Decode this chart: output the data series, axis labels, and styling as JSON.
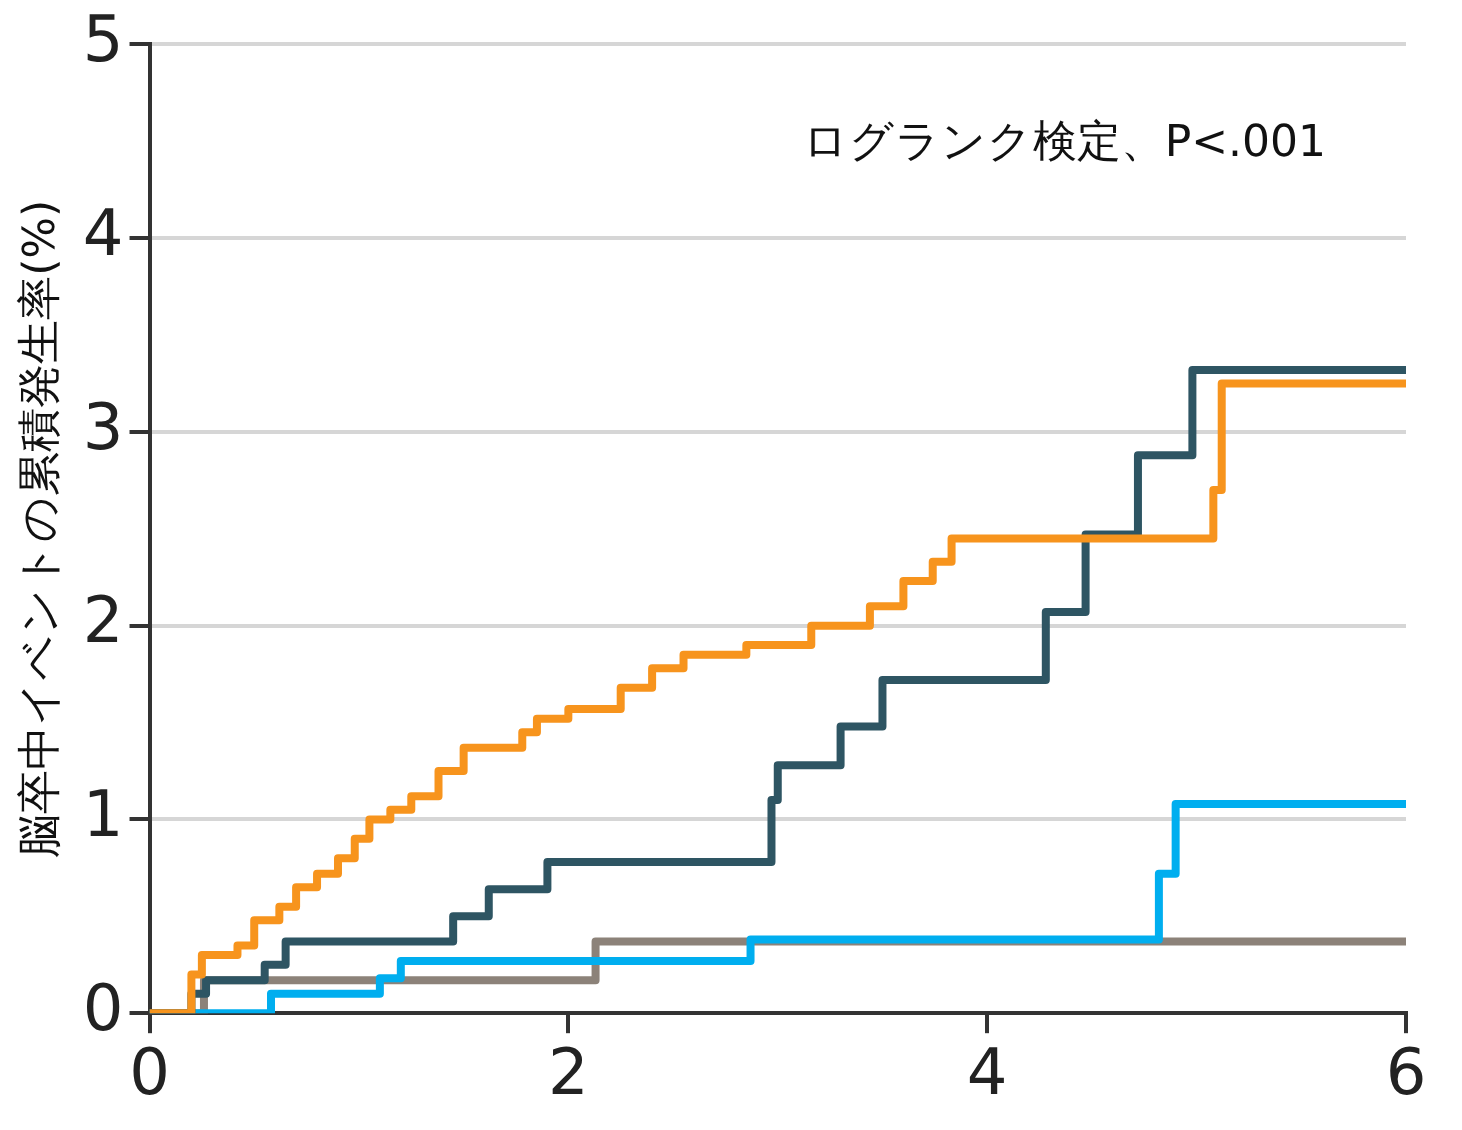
{
  "chart_data": {
    "type": "step",
    "ylabel": "脳卒中イベントの累積発生率(%)",
    "annotations": [
      "ログランク検定、P<.001"
    ],
    "xlim": [
      0,
      6
    ],
    "xticks": [
      0,
      2,
      4,
      6
    ],
    "ylim": [
      0,
      5
    ],
    "yticks": [
      0,
      1,
      2,
      3,
      4,
      5
    ],
    "grid": "y",
    "legend": false,
    "marker": "none",
    "line_style": "solid",
    "series": [
      {
        "color": "#f7941d",
        "x": [
          0,
          0.2,
          0.25,
          0.42,
          0.5,
          0.62,
          0.7,
          0.8,
          0.9,
          0.98,
          1.05,
          1.15,
          1.25,
          1.38,
          1.5,
          1.78,
          1.85,
          2.0,
          2.25,
          2.4,
          2.55,
          2.85,
          3.16,
          3.44,
          3.6,
          3.74,
          3.83,
          5.08,
          5.12,
          6
        ],
        "values": [
          0,
          0.2,
          0.3,
          0.35,
          0.48,
          0.55,
          0.65,
          0.72,
          0.8,
          0.9,
          1.0,
          1.05,
          1.12,
          1.25,
          1.37,
          1.45,
          1.52,
          1.57,
          1.68,
          1.78,
          1.85,
          1.9,
          2.0,
          2.1,
          2.23,
          2.33,
          2.45,
          2.7,
          3.25,
          3.25
        ]
      },
      {
        "color": "#2e5563",
        "x": [
          0,
          0.2,
          0.27,
          0.55,
          0.65,
          1.45,
          1.62,
          1.9,
          2.97,
          3.0,
          3.3,
          3.5,
          4.28,
          4.47,
          4.72,
          4.98,
          6
        ],
        "values": [
          0,
          0.1,
          0.17,
          0.25,
          0.37,
          0.5,
          0.64,
          0.78,
          1.1,
          1.28,
          1.48,
          1.72,
          2.07,
          2.47,
          2.88,
          3.32,
          3.32
        ]
      },
      {
        "color": "#00aeef",
        "x": [
          0,
          0.58,
          1.1,
          1.2,
          2.87,
          4.82,
          4.9,
          6
        ],
        "values": [
          0,
          0.1,
          0.18,
          0.27,
          0.38,
          0.72,
          1.08,
          1.08
        ]
      },
      {
        "color": "#8c8279",
        "x": [
          0,
          0.26,
          2.13,
          6
        ],
        "values": [
          0,
          0.17,
          0.37,
          0.37
        ]
      }
    ]
  }
}
